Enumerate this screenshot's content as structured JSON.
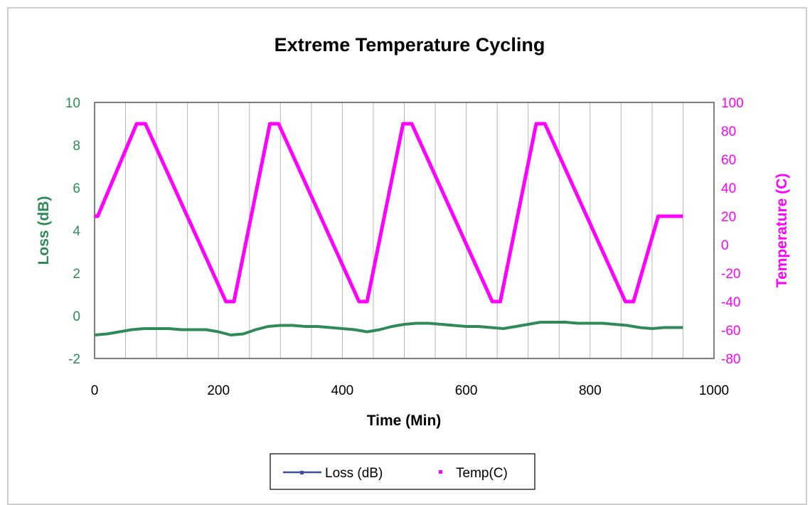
{
  "chart_data": {
    "type": "line",
    "title": "Extreme Temperature Cycling",
    "xlabel": "Time (Min)",
    "ylabel": "Loss (dB)",
    "y2label": "Temperature (C)",
    "xlim": [
      0,
      1000
    ],
    "ylim": [
      -2,
      10
    ],
    "y2lim": [
      -80,
      100
    ],
    "x_ticks": [
      "0",
      "200",
      "400",
      "600",
      "800",
      "1000"
    ],
    "y_ticks": [
      "-2",
      "0",
      "2",
      "4",
      "6",
      "8",
      "10"
    ],
    "y2_ticks": [
      "-80",
      "-60",
      "-40",
      "-20",
      "0",
      "20",
      "40",
      "60",
      "80",
      "100"
    ],
    "grid": "vertical lines every 50",
    "legend_position": "bottom",
    "colors": {
      "loss": "#2e8b57",
      "loss_legend": "#3f4fa0",
      "temp": "#ff00ff",
      "axis_left": "#2e8b57",
      "axis_right": "#ff00ff"
    },
    "series": [
      {
        "name": "Loss (dB)",
        "axis": "left",
        "x": [
          0,
          20,
          40,
          60,
          80,
          100,
          120,
          140,
          160,
          180,
          200,
          220,
          240,
          260,
          280,
          300,
          320,
          340,
          360,
          380,
          400,
          420,
          440,
          460,
          480,
          500,
          520,
          540,
          560,
          580,
          600,
          620,
          640,
          660,
          680,
          700,
          720,
          740,
          760,
          780,
          800,
          820,
          840,
          860,
          880,
          900,
          920,
          940,
          950
        ],
        "y": [
          -0.9,
          -0.85,
          -0.75,
          -0.65,
          -0.6,
          -0.6,
          -0.6,
          -0.65,
          -0.65,
          -0.65,
          -0.75,
          -0.9,
          -0.85,
          -0.65,
          -0.5,
          -0.45,
          -0.45,
          -0.5,
          -0.5,
          -0.55,
          -0.6,
          -0.65,
          -0.75,
          -0.65,
          -0.5,
          -0.4,
          -0.35,
          -0.35,
          -0.4,
          -0.45,
          -0.5,
          -0.5,
          -0.55,
          -0.6,
          -0.5,
          -0.4,
          -0.3,
          -0.3,
          -0.3,
          -0.35,
          -0.35,
          -0.35,
          -0.4,
          -0.45,
          -0.55,
          -0.6,
          -0.55,
          -0.55,
          -0.55
        ]
      },
      {
        "name": "Temp(C)",
        "axis": "right",
        "x": [
          0,
          5,
          68,
          82,
          212,
          225,
          283,
          297,
          427,
          440,
          498,
          512,
          642,
          655,
          713,
          727,
          857,
          870,
          910,
          920,
          950
        ],
        "y": [
          20,
          20,
          85,
          85,
          -40,
          -40,
          85,
          85,
          -40,
          -40,
          85,
          85,
          -40,
          -40,
          85,
          85,
          -40,
          -40,
          20,
          20,
          20
        ]
      }
    ]
  }
}
